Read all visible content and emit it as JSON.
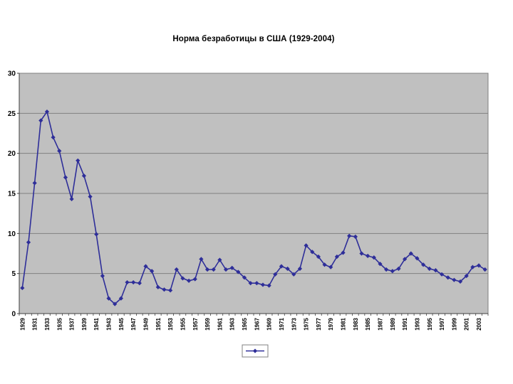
{
  "page": {
    "background": "#ffffff"
  },
  "chart_data": {
    "type": "line",
    "title": "Норма безработицы в США (1929-2004)",
    "x_start_year": 1929,
    "x_end_year": 2004,
    "values": [
      3.2,
      8.9,
      16.3,
      24.1,
      25.2,
      22.0,
      20.3,
      17.0,
      14.3,
      19.1,
      17.2,
      14.6,
      9.9,
      4.7,
      1.9,
      1.2,
      1.9,
      3.9,
      3.9,
      3.8,
      5.9,
      5.3,
      3.3,
      3.0,
      2.9,
      5.5,
      4.4,
      4.1,
      4.3,
      6.8,
      5.5,
      5.5,
      6.7,
      5.5,
      5.7,
      5.2,
      4.5,
      3.8,
      3.8,
      3.6,
      3.5,
      4.9,
      5.9,
      5.6,
      4.9,
      5.6,
      8.5,
      7.7,
      7.1,
      6.1,
      5.8,
      7.1,
      7.6,
      9.7,
      9.6,
      7.5,
      7.2,
      7.0,
      6.2,
      5.5,
      5.3,
      5.6,
      6.8,
      7.5,
      6.9,
      6.1,
      5.6,
      5.4,
      4.9,
      4.5,
      4.2,
      4.0,
      4.7,
      5.8,
      6.0,
      5.5
    ],
    "xtick_labels": [
      "1929",
      "1931",
      "1933",
      "1935",
      "1937",
      "1939",
      "1941",
      "1943",
      "1945",
      "1947",
      "1949",
      "1951",
      "1953",
      "1955",
      "1957",
      "1959",
      "1961",
      "1963",
      "1965",
      "1967",
      "1969",
      "1971",
      "1973",
      "1975",
      "1977",
      "1979",
      "1981",
      "1983",
      "1985",
      "1987",
      "1989",
      "1991",
      "1993",
      "1995",
      "1997",
      "1999",
      "2001",
      "2003"
    ],
    "ytick_labels": [
      "0",
      "5",
      "10",
      "15",
      "20",
      "25",
      "30"
    ],
    "ylim": [
      0,
      30
    ],
    "ytick_step": 5,
    "grid": true,
    "legend": {
      "position": "bottom-center",
      "label": "",
      "marker": "diamond-on-line"
    },
    "colors": {
      "series": "#2e2e99",
      "plot_background": "#c0c0c0",
      "gridline": "#808080",
      "plot_border": "#808080",
      "axis": "#404040",
      "tick": "#404040",
      "legend_background": "#ffffff",
      "legend_border": "#808080",
      "title_color": "#000000",
      "label_color": "#000000"
    }
  }
}
